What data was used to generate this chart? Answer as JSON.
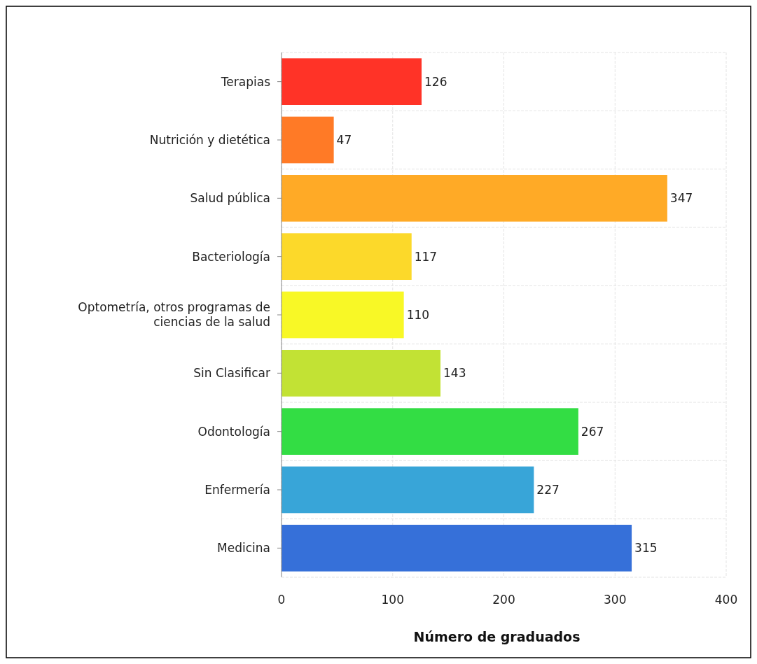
{
  "chart_data": {
    "type": "bar",
    "orientation": "horizontal",
    "xlabel": "Número de graduados",
    "categories": [
      "Terapias",
      "Nutrición y dietética",
      "Salud pública",
      "Bacteriología",
      "Optometría, otros programas de ciencias de la salud",
      "Sin Clasificar",
      "Odontología",
      "Enfermería",
      "Medicina"
    ],
    "values": [
      126,
      47,
      347,
      117,
      110,
      143,
      267,
      227,
      315
    ],
    "colors": [
      "#ff3327",
      "#ff7a26",
      "#ffaa26",
      "#fcd92a",
      "#f8f826",
      "#c2e234",
      "#33dd44",
      "#38a5d8",
      "#3670d9"
    ],
    "xlim": [
      0,
      400
    ],
    "xticks": [
      0,
      100,
      200,
      300,
      400
    ],
    "grid": true,
    "data_labels": true
  }
}
